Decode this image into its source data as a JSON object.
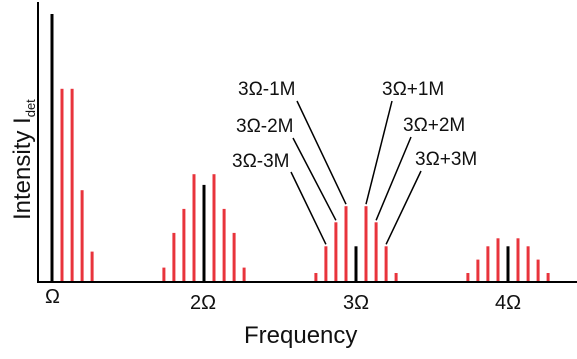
{
  "chart_data": {
    "type": "bar",
    "xlabel": "Frequency",
    "ylabel": "Intensity I",
    "ylabel_subscript": "det",
    "x_ticks": [
      {
        "pos": 1,
        "label": "Ω"
      },
      {
        "pos": 2,
        "label": "2Ω"
      },
      {
        "pos": 3,
        "label": "3Ω"
      },
      {
        "pos": 4,
        "label": "4Ω"
      }
    ],
    "ylim": [
      0,
      1
    ],
    "grid": false,
    "sideband_spacing": 0.066,
    "colors": {
      "harmonic": "#000000",
      "sideband": "#e8343c"
    },
    "series": [
      {
        "values": [
          {
            "x": 1,
            "y": 1.0
          }
        ]
      },
      {
        "values": [
          {
            "x": 1.066,
            "y": 0.72
          },
          {
            "x": 1.132,
            "y": 0.72
          },
          {
            "x": 1.198,
            "y": 0.34
          },
          {
            "x": 1.264,
            "y": 0.11
          }
        ]
      },
      {
        "values": [
          {
            "x": 2,
            "y": 0.36
          }
        ]
      },
      {
        "values": [
          {
            "x": 1.736,
            "y": 0.05
          },
          {
            "x": 1.802,
            "y": 0.18
          },
          {
            "x": 1.868,
            "y": 0.27
          },
          {
            "x": 1.934,
            "y": 0.4
          },
          {
            "x": 2.066,
            "y": 0.4
          },
          {
            "x": 2.132,
            "y": 0.27
          },
          {
            "x": 2.198,
            "y": 0.18
          },
          {
            "x": 2.264,
            "y": 0.05
          }
        ]
      },
      {
        "values": [
          {
            "x": 3,
            "y": 0.13
          }
        ]
      },
      {
        "values": [
          {
            "x": 2.736,
            "y": 0.03
          },
          {
            "x": 2.802,
            "y": 0.13
          },
          {
            "x": 2.868,
            "y": 0.22
          },
          {
            "x": 2.934,
            "y": 0.28
          },
          {
            "x": 3.066,
            "y": 0.28
          },
          {
            "x": 3.132,
            "y": 0.22
          },
          {
            "x": 3.198,
            "y": 0.13
          },
          {
            "x": 3.264,
            "y": 0.03
          }
        ]
      },
      {
        "values": [
          {
            "x": 4,
            "y": 0.13
          }
        ]
      },
      {
        "values": [
          {
            "x": 3.736,
            "y": 0.03
          },
          {
            "x": 3.802,
            "y": 0.08
          },
          {
            "x": 3.868,
            "y": 0.13
          },
          {
            "x": 3.934,
            "y": 0.16
          },
          {
            "x": 4.066,
            "y": 0.16
          },
          {
            "x": 4.132,
            "y": 0.13
          },
          {
            "x": 4.198,
            "y": 0.08
          },
          {
            "x": 4.264,
            "y": 0.03
          }
        ]
      }
    ],
    "annotations": [
      {
        "text": "3Ω-1M",
        "x": 2.934
      },
      {
        "text": "3Ω-2M",
        "x": 2.868
      },
      {
        "text": "3Ω-3M",
        "x": 2.802
      },
      {
        "text": "3Ω+1M",
        "x": 3.066
      },
      {
        "text": "3Ω+2M",
        "x": 3.132
      },
      {
        "text": "3Ω+3M",
        "x": 3.198
      }
    ]
  }
}
